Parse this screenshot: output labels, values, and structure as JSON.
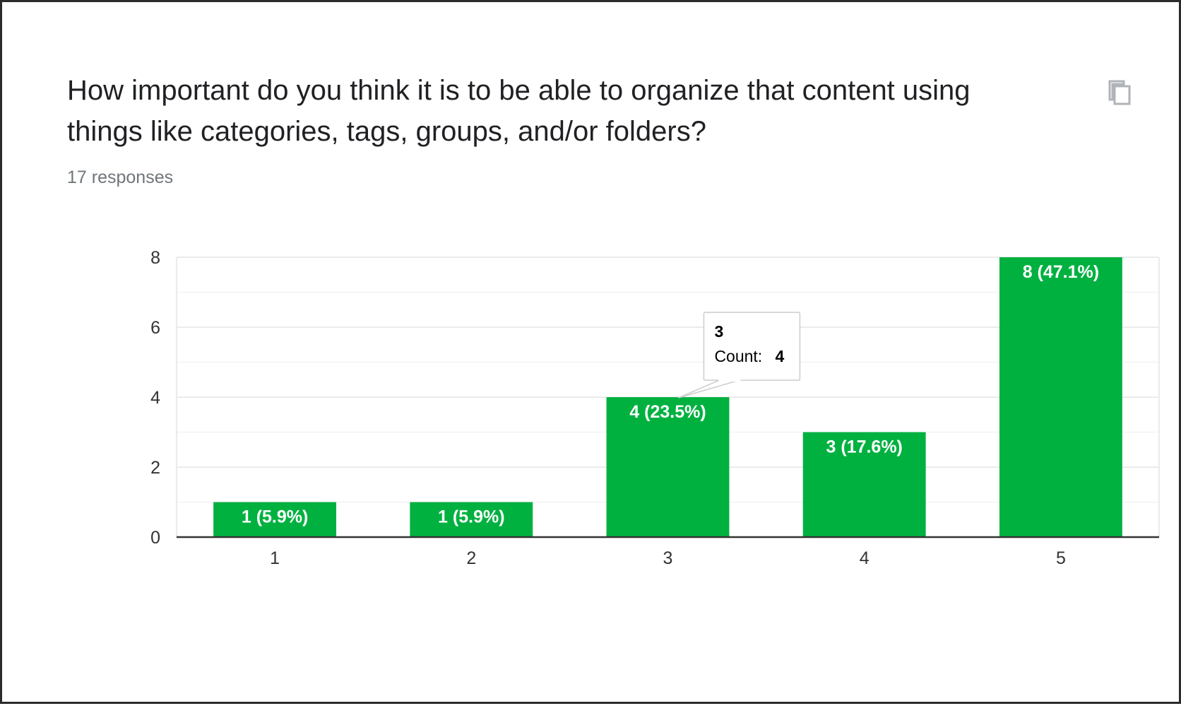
{
  "question": {
    "title": "How important do you think it is to be able to organize that content using things like categories, tags, groups, and/or folders?",
    "responses": "17 responses"
  },
  "icons": {
    "copy": "copy-icon"
  },
  "colors": {
    "bar": "#00b140",
    "gridline": "#ebebeb",
    "axis": "#333333",
    "text": "#202124",
    "muted": "#70757a"
  },
  "tooltip": {
    "category": "3",
    "label": "Count:",
    "value": "4"
  },
  "chart_data": {
    "type": "bar",
    "title": "How important do you think it is to be able to organize that content using things like categories, tags, groups, and/or folders?",
    "categories": [
      "1",
      "2",
      "3",
      "4",
      "5"
    ],
    "values": [
      1,
      1,
      4,
      3,
      8
    ],
    "data_labels": [
      "1 (5.9%)",
      "1 (5.9%)",
      "4 (23.5%)",
      "3 (17.6%)",
      "8 (47.1%)"
    ],
    "ylim": [
      0,
      8
    ],
    "yticks": [
      0,
      2,
      4,
      6,
      8
    ],
    "xlabel": "",
    "ylabel": "",
    "grid": true,
    "legend": "none"
  }
}
